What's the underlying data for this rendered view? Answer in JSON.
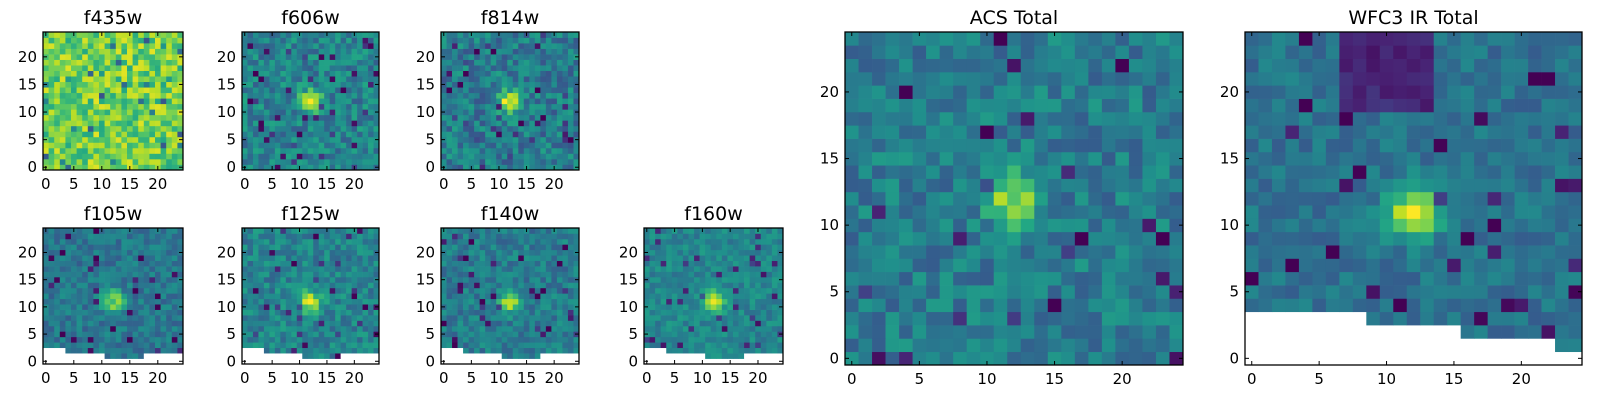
{
  "chart_data": [
    {
      "type": "heatmap",
      "id": "f435w",
      "title": "f435w",
      "grid_size": 25,
      "xlim": [
        0,
        24
      ],
      "ylim": [
        0,
        24
      ],
      "xticks": [
        0,
        5,
        10,
        15,
        20
      ],
      "yticks": [
        0,
        5,
        10,
        15,
        20
      ],
      "xtick_labels": [
        "0",
        "5",
        "10",
        "15",
        "20"
      ],
      "ytick_labels": [
        "0",
        "5",
        "10",
        "15",
        "20"
      ],
      "colormap": "viridis",
      "source_peak_xy": null,
      "masked_bottom": false
    },
    {
      "type": "heatmap",
      "id": "f606w",
      "title": "f606w",
      "grid_size": 25,
      "xlim": [
        0,
        24
      ],
      "ylim": [
        0,
        24
      ],
      "xticks": [
        0,
        5,
        10,
        15,
        20
      ],
      "yticks": [
        0,
        5,
        10,
        15,
        20
      ],
      "xtick_labels": [
        "0",
        "5",
        "10",
        "15",
        "20"
      ],
      "ytick_labels": [
        "0",
        "5",
        "10",
        "15",
        "20"
      ],
      "colormap": "viridis",
      "source_peak_xy": [
        12,
        12
      ],
      "masked_bottom": false
    },
    {
      "type": "heatmap",
      "id": "f814w",
      "title": "f814w",
      "grid_size": 25,
      "xlim": [
        0,
        24
      ],
      "ylim": [
        0,
        24
      ],
      "xticks": [
        0,
        5,
        10,
        15,
        20
      ],
      "yticks": [
        0,
        5,
        10,
        15,
        20
      ],
      "xtick_labels": [
        "0",
        "5",
        "10",
        "15",
        "20"
      ],
      "ytick_labels": [
        "0",
        "5",
        "10",
        "15",
        "20"
      ],
      "colormap": "viridis",
      "source_peak_xy": [
        12,
        12
      ],
      "masked_bottom": false
    },
    {
      "type": "heatmap",
      "id": "f105w",
      "title": "f105w",
      "grid_size": 25,
      "xlim": [
        0,
        24
      ],
      "ylim": [
        0,
        24
      ],
      "xticks": [
        0,
        5,
        10,
        15,
        20
      ],
      "yticks": [
        0,
        5,
        10,
        15,
        20
      ],
      "xtick_labels": [
        "0",
        "5",
        "10",
        "15",
        "20"
      ],
      "ytick_labels": [
        "0",
        "5",
        "10",
        "15",
        "20"
      ],
      "colormap": "viridis",
      "source_peak_xy": [
        12,
        11
      ],
      "masked_bottom": true
    },
    {
      "type": "heatmap",
      "id": "f125w",
      "title": "f125w",
      "grid_size": 25,
      "xlim": [
        0,
        24
      ],
      "ylim": [
        0,
        24
      ],
      "xticks": [
        0,
        5,
        10,
        15,
        20
      ],
      "yticks": [
        0,
        5,
        10,
        15,
        20
      ],
      "xtick_labels": [
        "0",
        "5",
        "10",
        "15",
        "20"
      ],
      "ytick_labels": [
        "0",
        "5",
        "10",
        "15",
        "20"
      ],
      "colormap": "viridis",
      "source_peak_xy": [
        12,
        11
      ],
      "masked_bottom": true
    },
    {
      "type": "heatmap",
      "id": "f140w",
      "title": "f140w",
      "grid_size": 25,
      "xlim": [
        0,
        24
      ],
      "ylim": [
        0,
        24
      ],
      "xticks": [
        0,
        5,
        10,
        15,
        20
      ],
      "yticks": [
        0,
        5,
        10,
        15,
        20
      ],
      "xtick_labels": [
        "0",
        "5",
        "10",
        "15",
        "20"
      ],
      "ytick_labels": [
        "0",
        "5",
        "10",
        "15",
        "20"
      ],
      "colormap": "viridis",
      "source_peak_xy": [
        12,
        11
      ],
      "masked_bottom": true
    },
    {
      "type": "heatmap",
      "id": "f160w",
      "title": "f160w",
      "grid_size": 25,
      "xlim": [
        0,
        24
      ],
      "ylim": [
        0,
        24
      ],
      "xticks": [
        0,
        5,
        10,
        15,
        20
      ],
      "yticks": [
        0,
        5,
        10,
        15,
        20
      ],
      "xtick_labels": [
        "0",
        "5",
        "10",
        "15",
        "20"
      ],
      "ytick_labels": [
        "0",
        "5",
        "10",
        "15",
        "20"
      ],
      "colormap": "viridis",
      "source_peak_xy": [
        12,
        11
      ],
      "masked_bottom": true
    },
    {
      "type": "heatmap",
      "id": "acs_total",
      "title": "ACS Total",
      "grid_size": 25,
      "xlim": [
        0,
        24
      ],
      "ylim": [
        0,
        24
      ],
      "xticks": [
        0,
        5,
        10,
        15,
        20
      ],
      "yticks": [
        0,
        5,
        10,
        15,
        20
      ],
      "xtick_labels": [
        "0",
        "5",
        "10",
        "15",
        "20"
      ],
      "ytick_labels": [
        "0",
        "5",
        "10",
        "15",
        "20"
      ],
      "colormap": "viridis",
      "source_peak_xy": [
        12,
        12
      ],
      "masked_bottom": false
    },
    {
      "type": "heatmap",
      "id": "wfc3_ir_total",
      "title": "WFC3 IR Total",
      "grid_size": 25,
      "xlim": [
        0,
        24
      ],
      "ylim": [
        0,
        24
      ],
      "xticks": [
        0,
        5,
        10,
        15,
        20
      ],
      "yticks": [
        0,
        5,
        10,
        15,
        20
      ],
      "xtick_labels": [
        "0",
        "5",
        "10",
        "15",
        "20"
      ],
      "ytick_labels": [
        "0",
        "5",
        "10",
        "15",
        "20"
      ],
      "colormap": "viridis",
      "source_peak_xy": [
        12,
        11
      ],
      "masked_bottom": true
    }
  ]
}
